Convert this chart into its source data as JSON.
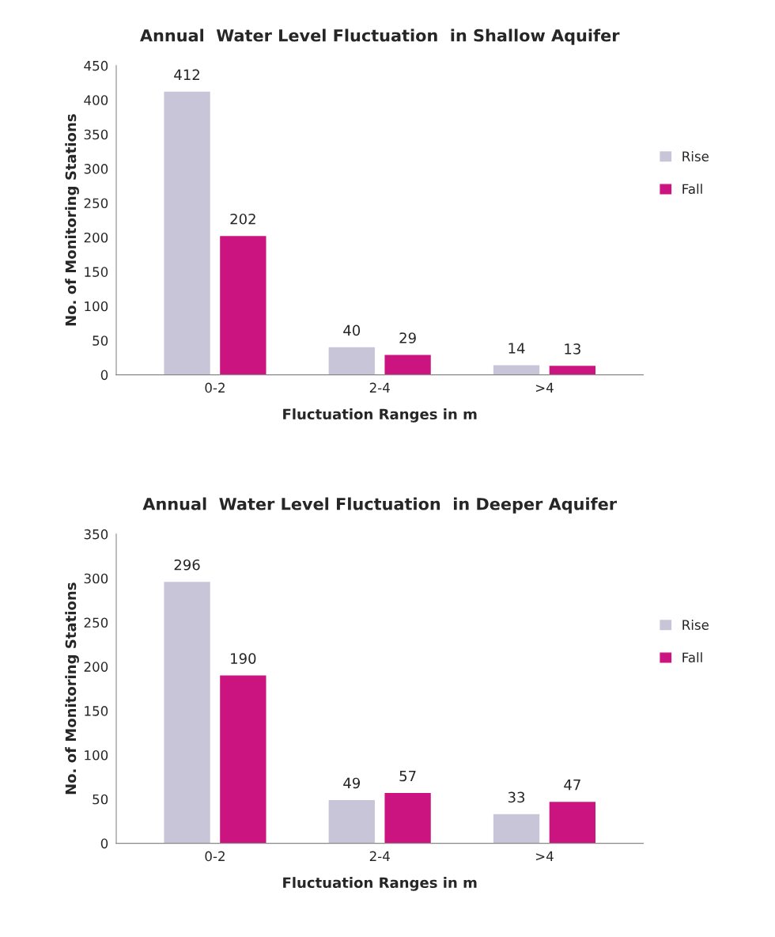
{
  "chart_data": [
    {
      "type": "bar",
      "title": "Annual  Water Level Fluctuation  in Shallow Aquifer",
      "xlabel": "Fluctuation Ranges in m",
      "ylabel": "No. of Monitoring Stations",
      "categories": [
        "0-2",
        "2-4",
        ">4"
      ],
      "series": [
        {
          "name": "Rise",
          "color": "#c9c5d9",
          "values": [
            412,
            40,
            14
          ]
        },
        {
          "name": "Fall",
          "color": "#cc1480",
          "values": [
            202,
            29,
            13
          ]
        }
      ],
      "ylim": [
        0,
        450
      ],
      "yticks": [
        0,
        50,
        100,
        150,
        200,
        250,
        300,
        350,
        400,
        450
      ],
      "data_labels": true,
      "legend": "right",
      "grid": false
    },
    {
      "type": "bar",
      "title": "Annual  Water Level Fluctuation  in Deeper Aquifer",
      "xlabel": "Fluctuation Ranges in m",
      "ylabel": "No. of Monitoring Stations",
      "categories": [
        "0-2",
        "2-4",
        ">4"
      ],
      "series": [
        {
          "name": "Rise",
          "color": "#c9c5d9",
          "values": [
            296,
            49,
            33
          ]
        },
        {
          "name": "Fall",
          "color": "#cc1480",
          "values": [
            190,
            57,
            47
          ]
        }
      ],
      "ylim": [
        0,
        350
      ],
      "yticks": [
        0,
        50,
        100,
        150,
        200,
        250,
        300,
        350
      ],
      "data_labels": true,
      "legend": "right",
      "grid": false
    }
  ]
}
